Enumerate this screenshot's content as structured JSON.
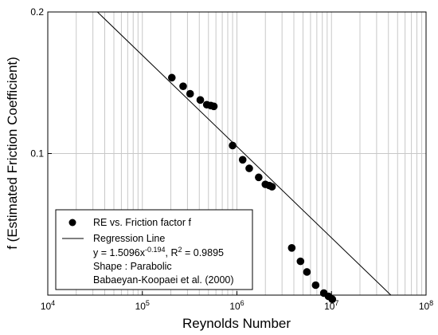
{
  "chart_data": {
    "type": "scatter",
    "xlabel": "Reynolds Number",
    "ylabel": "f (Estimated Friction Coefficient)",
    "x_scale": "log",
    "y_scale": "log",
    "xlim": [
      10000,
      100000000
    ],
    "ylim": [
      0.05,
      0.2
    ],
    "grid": true,
    "x_ticks": [
      {
        "value": 10000,
        "base": "10",
        "exp": "4"
      },
      {
        "value": 100000,
        "base": "10",
        "exp": "5"
      },
      {
        "value": 1000000,
        "base": "10",
        "exp": "6"
      },
      {
        "value": 10000000,
        "base": "10",
        "exp": "7"
      },
      {
        "value": 100000000,
        "base": "10",
        "exp": "8"
      }
    ],
    "y_ticks": [
      {
        "value": 0.2,
        "label": "0.2"
      },
      {
        "value": 0.1,
        "label": "0.1"
      }
    ],
    "series": [
      {
        "name": "RE vs.  Friction factor f",
        "kind": "points",
        "color": "#000000",
        "points": [
          {
            "x": 205000,
            "y": 0.145
          },
          {
            "x": 270000,
            "y": 0.139
          },
          {
            "x": 320000,
            "y": 0.134
          },
          {
            "x": 410000,
            "y": 0.13
          },
          {
            "x": 480000,
            "y": 0.127
          },
          {
            "x": 530000,
            "y": 0.1265
          },
          {
            "x": 570000,
            "y": 0.126
          },
          {
            "x": 900000,
            "y": 0.104
          },
          {
            "x": 1150000,
            "y": 0.097
          },
          {
            "x": 1350000,
            "y": 0.093
          },
          {
            "x": 1700000,
            "y": 0.089
          },
          {
            "x": 2000000,
            "y": 0.086
          },
          {
            "x": 2200000,
            "y": 0.0855
          },
          {
            "x": 2350000,
            "y": 0.085
          },
          {
            "x": 3800000,
            "y": 0.063
          },
          {
            "x": 4700000,
            "y": 0.059
          },
          {
            "x": 5500000,
            "y": 0.056
          },
          {
            "x": 6800000,
            "y": 0.0525
          },
          {
            "x": 8300000,
            "y": 0.0505
          },
          {
            "x": 9300000,
            "y": 0.0497
          },
          {
            "x": 10200000,
            "y": 0.049
          }
        ]
      },
      {
        "name": "Regression Line",
        "kind": "line",
        "color": "#000000",
        "coefficient": 1.5096,
        "exponent": -0.194
      }
    ],
    "legend": {
      "position": "bottom-left",
      "entries": [
        {
          "marker": "dot",
          "text": "RE vs.  Friction factor f"
        },
        {
          "marker": "line",
          "text": "Regression Line"
        }
      ],
      "eq_prefix": "y = 1.5096x",
      "eq_exp": "-0.194",
      "r2_prefix": ",  R",
      "r2_sup": "2",
      "r2_value": " =  0.9895",
      "shape": "Shape : Parabolic",
      "source": "Babaeyan-Koopaei et al. (2000)"
    }
  }
}
